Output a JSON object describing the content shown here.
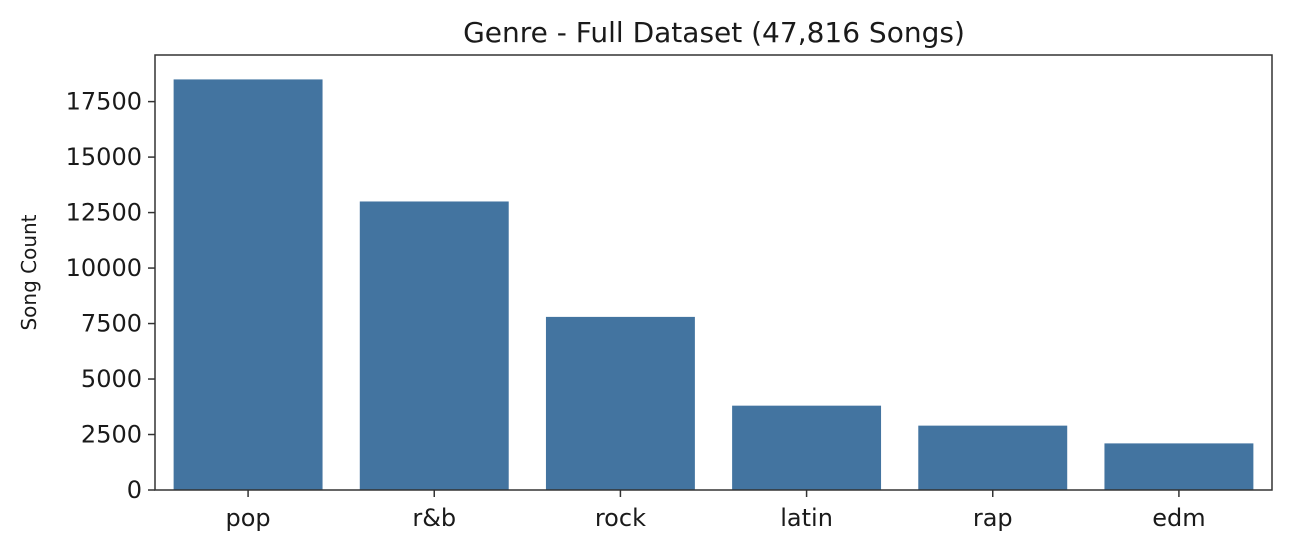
{
  "chart_data": {
    "type": "bar",
    "title": "Genre - Full Dataset (47,816 Songs)",
    "xlabel": "",
    "ylabel": "Song Count",
    "categories": [
      "pop",
      "r&b",
      "rock",
      "latin",
      "rap",
      "edm"
    ],
    "values": [
      18500,
      13000,
      7800,
      3800,
      2900,
      2100
    ],
    "ylim": [
      0,
      19600
    ],
    "yticks": [
      0,
      2500,
      5000,
      7500,
      10000,
      12500,
      15000,
      17500
    ],
    "grid": false,
    "legend": "none",
    "bar_color": "#4374a0",
    "axis_color": "#333333"
  }
}
